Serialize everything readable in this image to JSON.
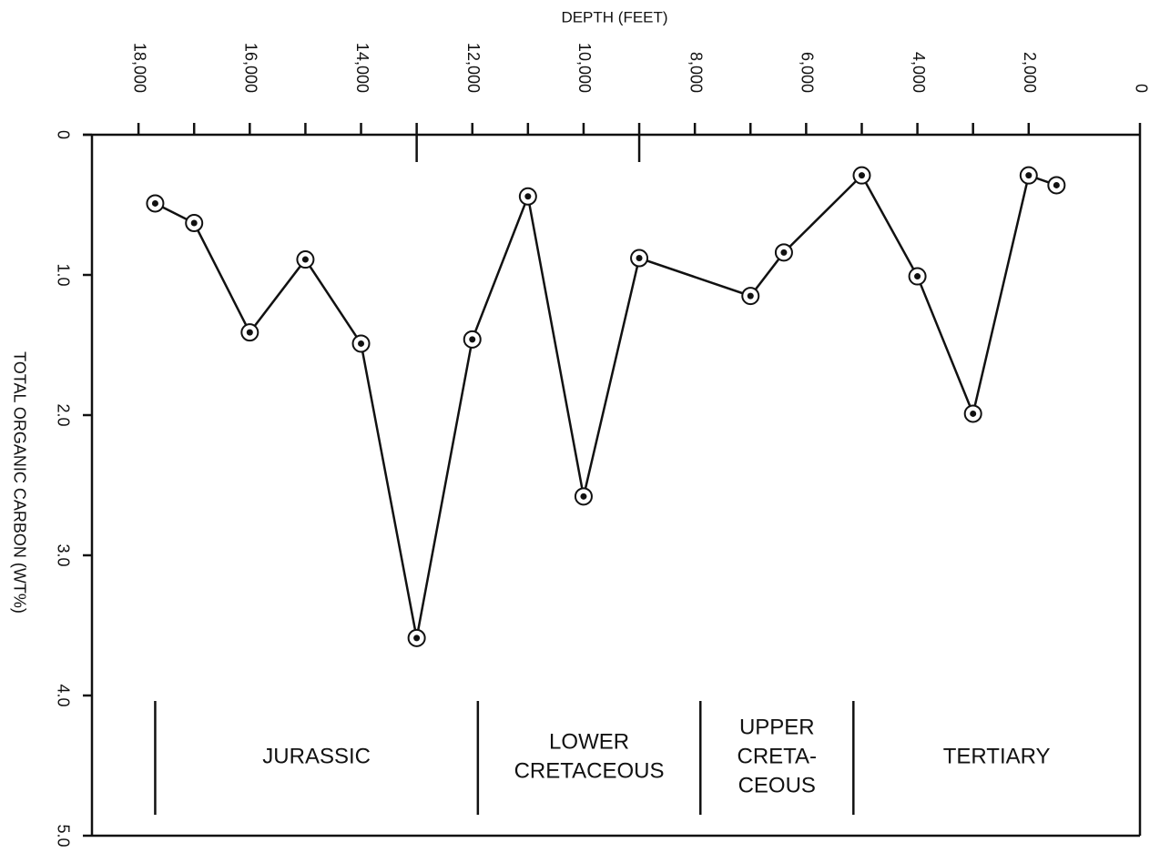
{
  "chart_data": {
    "type": "line",
    "xlabel": "DEPTH (FEET)",
    "ylabel": "TOTAL ORGANIC CARBON (WT%)",
    "xlim": [
      19000,
      0
    ],
    "ylim": [
      0,
      5
    ],
    "y_inverted": true,
    "xticks": [
      {
        "value": 18000,
        "label": "18,000"
      },
      {
        "value": 16000,
        "label": "16,000"
      },
      {
        "value": 14000,
        "label": "14,000"
      },
      {
        "value": 12000,
        "label": "12,000"
      },
      {
        "value": 10000,
        "label": "10,000"
      },
      {
        "value": 8000,
        "label": "8,000"
      },
      {
        "value": 6000,
        "label": "6,000"
      },
      {
        "value": 4000,
        "label": "4,000"
      },
      {
        "value": 2000,
        "label": "2,000"
      },
      0
    ],
    "xminorticks": [
      17000,
      15000,
      13000,
      11000,
      9000,
      7000,
      5000,
      3000
    ],
    "xlongticks": [
      13000,
      9000
    ],
    "yticks": [
      0,
      {
        "value": 1,
        "label": "1.0"
      },
      {
        "value": 2,
        "label": "2.0"
      },
      {
        "value": 3,
        "label": "3.0"
      },
      {
        "value": 4,
        "label": "4.0"
      },
      {
        "value": 5,
        "label": "5.0"
      }
    ],
    "x": [
      17700,
      17000,
      16000,
      15000,
      14000,
      13000,
      12000,
      11000,
      10000,
      9000,
      7000,
      6400,
      5000,
      4000,
      3000,
      2000,
      1500
    ],
    "series": [
      {
        "color": "#111111",
        "values": [
          0.49,
          0.63,
          1.41,
          0.89,
          1.49,
          3.59,
          1.46,
          0.44,
          2.58,
          0.88,
          1.15,
          0.84,
          0.29,
          1.01,
          1.99,
          0.29,
          0.36
        ]
      }
    ],
    "period_dividers": [
      17700,
      11900,
      7900,
      5150
    ],
    "periods": [
      {
        "lines": [
          "JURASSIC"
        ]
      },
      {
        "lines": [
          "LOWER",
          "CRETACEOUS"
        ]
      },
      {
        "lines": [
          "UPPER",
          "CRETA-",
          "CEOUS"
        ]
      },
      {
        "lines": [
          "TERTIARY"
        ]
      }
    ]
  }
}
